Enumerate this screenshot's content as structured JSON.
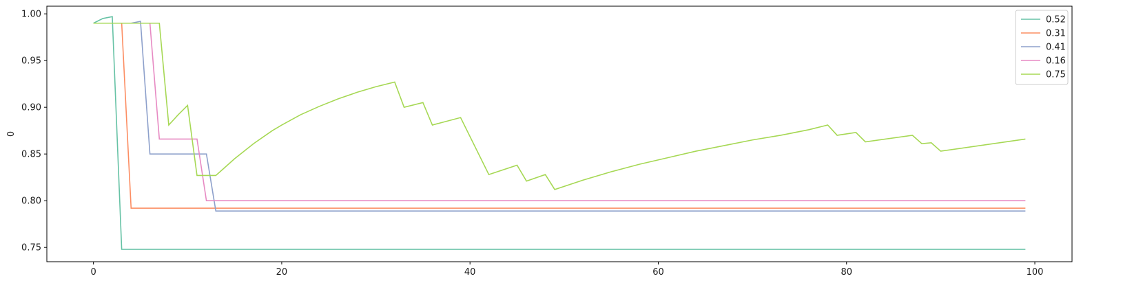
{
  "chart_data": {
    "type": "line",
    "title": "",
    "xlabel": "",
    "ylabel": "0",
    "xlim": [
      -4.95,
      103.95
    ],
    "ylim": [
      0.7347,
      1.0082
    ],
    "xticks": [
      0,
      20,
      40,
      60,
      80,
      100
    ],
    "yticks": [
      0.75,
      0.8,
      0.85,
      0.9,
      0.95,
      1.0
    ],
    "ytick_labels": [
      "0.75",
      "0.80",
      "0.85",
      "0.90",
      "0.95",
      "1.00"
    ],
    "grid": false,
    "legend_position": "top-right",
    "series": [
      {
        "name": "0.52",
        "color": "#66c2a5",
        "points": [
          [
            0,
            0.99
          ],
          [
            1,
            0.995
          ],
          [
            2,
            0.997
          ],
          [
            3,
            0.748
          ],
          [
            99,
            0.748
          ]
        ]
      },
      {
        "name": "0.31",
        "color": "#fc8d62",
        "points": [
          [
            0,
            0.99
          ],
          [
            3,
            0.99
          ],
          [
            4,
            0.792
          ],
          [
            99,
            0.792
          ]
        ]
      },
      {
        "name": "0.41",
        "color": "#8da0cb",
        "points": [
          [
            0,
            0.99
          ],
          [
            4,
            0.99
          ],
          [
            5,
            0.992
          ],
          [
            6,
            0.85
          ],
          [
            12,
            0.85
          ],
          [
            13,
            0.789
          ],
          [
            99,
            0.789
          ]
        ]
      },
      {
        "name": "0.16",
        "color": "#e78ac3",
        "points": [
          [
            0,
            0.99
          ],
          [
            6,
            0.99
          ],
          [
            7,
            0.866
          ],
          [
            11,
            0.866
          ],
          [
            12,
            0.8
          ],
          [
            99,
            0.8
          ]
        ]
      },
      {
        "name": "0.75",
        "color": "#a6d854",
        "points": [
          [
            0,
            0.99
          ],
          [
            7,
            0.99
          ],
          [
            8,
            0.881
          ],
          [
            9,
            0.892
          ],
          [
            10,
            0.902
          ],
          [
            11,
            0.827
          ],
          [
            13,
            0.827
          ],
          [
            14,
            0.836
          ],
          [
            15,
            0.845
          ],
          [
            16,
            0.853
          ],
          [
            17,
            0.861
          ],
          [
            18,
            0.868
          ],
          [
            19,
            0.875
          ],
          [
            20,
            0.881
          ],
          [
            22,
            0.892
          ],
          [
            24,
            0.901
          ],
          [
            26,
            0.909
          ],
          [
            28,
            0.916
          ],
          [
            30,
            0.922
          ],
          [
            32,
            0.927
          ],
          [
            33,
            0.9
          ],
          [
            35,
            0.905
          ],
          [
            36,
            0.881
          ],
          [
            39,
            0.889
          ],
          [
            42,
            0.828
          ],
          [
            45,
            0.838
          ],
          [
            46,
            0.821
          ],
          [
            48,
            0.828
          ],
          [
            49,
            0.812
          ],
          [
            52,
            0.822
          ],
          [
            55,
            0.831
          ],
          [
            58,
            0.839
          ],
          [
            61,
            0.846
          ],
          [
            64,
            0.853
          ],
          [
            67,
            0.859
          ],
          [
            70,
            0.865
          ],
          [
            73,
            0.87
          ],
          [
            76,
            0.876
          ],
          [
            78,
            0.881
          ],
          [
            79,
            0.87
          ],
          [
            81,
            0.873
          ],
          [
            82,
            0.863
          ],
          [
            87,
            0.87
          ],
          [
            88,
            0.861
          ],
          [
            89,
            0.862
          ],
          [
            90,
            0.853
          ],
          [
            99,
            0.866
          ]
        ]
      }
    ]
  }
}
